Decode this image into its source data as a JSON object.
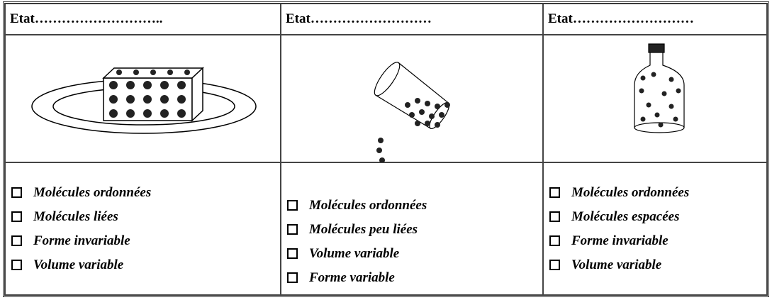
{
  "table": {
    "headers": [
      "Etat………………………..",
      "Etat………………………",
      "Etat………………………"
    ],
    "options": [
      [
        "Molécules ordonnées",
        "Molécules liées",
        "Forme invariable",
        "Volume variable"
      ],
      [
        "Molécules ordonnées",
        "Molécules peu liées",
        "Volume variable",
        "Forme variable"
      ],
      [
        "Molécules ordonnées",
        "Molécules espacées",
        "Forme invariable",
        "Volume variable"
      ]
    ]
  }
}
